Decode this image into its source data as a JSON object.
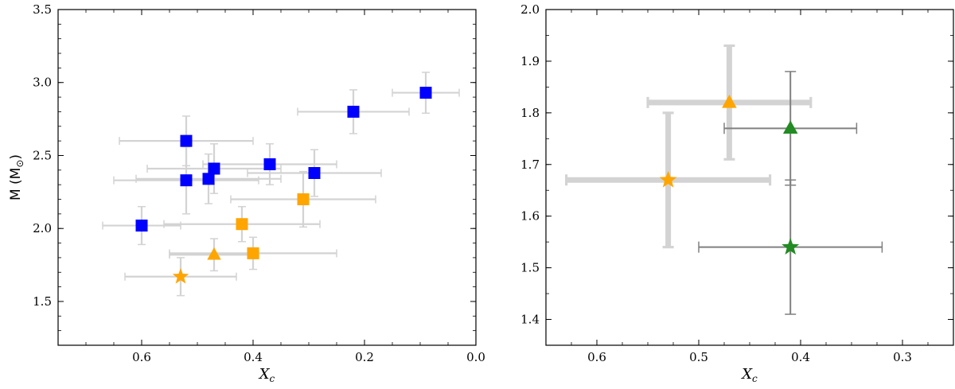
{
  "chart_data": [
    {
      "type": "scatter",
      "xlabel": "X",
      "xlabel_sub": "c",
      "ylabel": "M (M",
      "ylabel_suffix": ")",
      "ylabel_symbol": "⊙",
      "xlim": [
        0.75,
        0.0
      ],
      "ylim": [
        1.2,
        3.5
      ],
      "xticks": [
        "0.6",
        "0.4",
        "0.2",
        "0.0"
      ],
      "xtick_values": [
        0.6,
        0.4,
        0.2,
        0.0
      ],
      "yticks": [
        "1.5",
        "2.0",
        "2.5",
        "3.0",
        "3.5"
      ],
      "ytick_values": [
        1.5,
        2.0,
        2.5,
        3.0,
        3.5
      ],
      "grid": false,
      "colors": {
        "blue": "#0000ff",
        "orange": "#ffa500",
        "error": "#d3d3d3"
      },
      "points": [
        {
          "x": 0.09,
          "y": 2.93,
          "xerr": 0.06,
          "yerr": 0.14,
          "marker": "square",
          "color": "blue"
        },
        {
          "x": 0.22,
          "y": 2.8,
          "xerr": 0.1,
          "yerr": 0.15,
          "marker": "square",
          "color": "blue"
        },
        {
          "x": 0.52,
          "y": 2.6,
          "xerr": 0.12,
          "yerr": 0.17,
          "marker": "square",
          "color": "blue"
        },
        {
          "x": 0.37,
          "y": 2.44,
          "xerr": 0.12,
          "yerr": 0.14,
          "marker": "square",
          "color": "blue"
        },
        {
          "x": 0.47,
          "y": 2.41,
          "xerr": 0.12,
          "yerr": 0.17,
          "marker": "square",
          "color": "blue"
        },
        {
          "x": 0.29,
          "y": 2.38,
          "xerr": 0.12,
          "yerr": 0.16,
          "marker": "square",
          "color": "blue"
        },
        {
          "x": 0.48,
          "y": 2.34,
          "xerr": 0.13,
          "yerr": 0.17,
          "marker": "square",
          "color": "blue"
        },
        {
          "x": 0.52,
          "y": 2.33,
          "xerr": 0.13,
          "yerr": 0.23,
          "marker": "square",
          "color": "blue"
        },
        {
          "x": 0.6,
          "y": 2.02,
          "xerr": 0.07,
          "yerr": 0.13,
          "marker": "square",
          "color": "blue"
        },
        {
          "x": 0.31,
          "y": 2.2,
          "xerr": 0.13,
          "yerr": 0.19,
          "marker": "square",
          "color": "orange"
        },
        {
          "x": 0.42,
          "y": 2.03,
          "xerr": 0.14,
          "yerr": 0.12,
          "marker": "square",
          "color": "orange"
        },
        {
          "x": 0.4,
          "y": 1.83,
          "xerr": 0.15,
          "yerr": 0.11,
          "marker": "square",
          "color": "orange"
        },
        {
          "x": 0.47,
          "y": 1.82,
          "xerr": 0.08,
          "yerr": 0.11,
          "marker": "triangle",
          "color": "orange"
        },
        {
          "x": 0.53,
          "y": 1.67,
          "xerr": 0.1,
          "yerr": 0.13,
          "marker": "star",
          "color": "orange"
        }
      ]
    },
    {
      "type": "scatter",
      "xlabel": "X",
      "xlabel_sub": "c",
      "xlim": [
        0.65,
        0.25
      ],
      "ylim": [
        1.35,
        2.0
      ],
      "xticks": [
        "0.6",
        "0.5",
        "0.4",
        "0.3"
      ],
      "xtick_values": [
        0.6,
        0.5,
        0.4,
        0.3
      ],
      "yticks": [
        "1.4",
        "1.5",
        "1.6",
        "1.7",
        "1.8",
        "1.9",
        "2.0"
      ],
      "ytick_values": [
        1.4,
        1.5,
        1.6,
        1.7,
        1.8,
        1.9,
        2.0
      ],
      "grid": false,
      "colors": {
        "orange": "#ffa500",
        "green": "#228b22",
        "error_light": "#d3d3d3",
        "error_dark": "#808080"
      },
      "points": [
        {
          "x": 0.47,
          "y": 1.82,
          "xerr": 0.08,
          "yerr": 0.11,
          "marker": "triangle",
          "color": "orange",
          "errcolor": "error_light",
          "errwidth": 7
        },
        {
          "x": 0.53,
          "y": 1.67,
          "xerr": 0.1,
          "yerr": 0.13,
          "marker": "star",
          "color": "orange",
          "errcolor": "error_light",
          "errwidth": 7
        },
        {
          "x": 0.41,
          "y": 1.77,
          "xerr": 0.065,
          "yerr": 0.11,
          "marker": "triangle",
          "color": "green",
          "errcolor": "error_dark",
          "errwidth": 2
        },
        {
          "x": 0.41,
          "y": 1.54,
          "xerr": 0.09,
          "yerr": 0.13,
          "marker": "star",
          "color": "green",
          "errcolor": "error_dark",
          "errwidth": 2
        }
      ]
    }
  ]
}
